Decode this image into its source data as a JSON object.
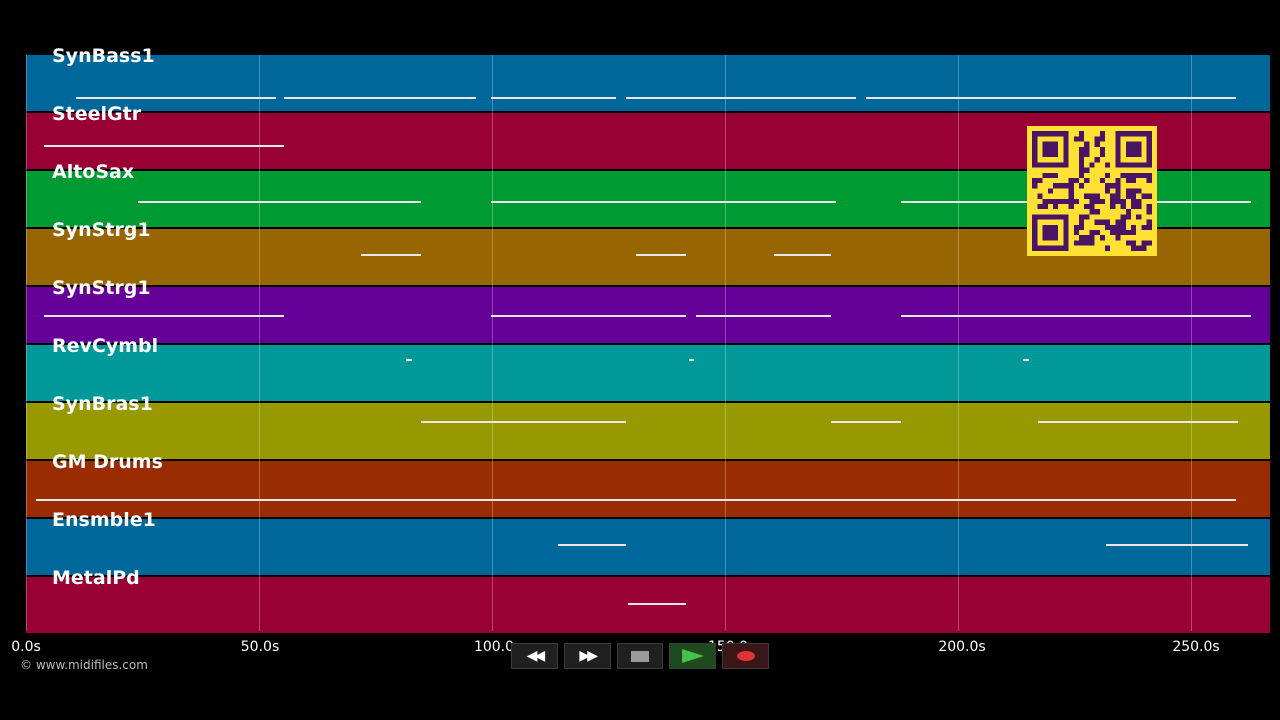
{
  "tracks": [
    {
      "name": "SynBass1",
      "color": "#00679b"
    },
    {
      "name": "SteelGtr",
      "color": "#990033"
    },
    {
      "name": "AltoSax",
      "color": "#009a33"
    },
    {
      "name": "SynStrg1",
      "color": "#986600"
    },
    {
      "name": "SynStrg1",
      "color": "#650099"
    },
    {
      "name": "RevCymbl",
      "color": "#009898"
    },
    {
      "name": "SynBras1",
      "color": "#989900"
    },
    {
      "name": "GM Drums",
      "color": "#992c00"
    },
    {
      "name": "Ensmble1",
      "color": "#00679b"
    },
    {
      "name": "MetalPd",
      "color": "#990033"
    }
  ],
  "time_axis": {
    "unit": "s",
    "max_seconds": 267,
    "ticks": [
      "0.0s",
      "50.0s",
      "100.0",
      "150.0",
      "200.0s",
      "250.0s"
    ]
  },
  "copyright": "© www.midifiles.com",
  "transport": {
    "rewind_label": "◀◀",
    "forward_label": "▶▶",
    "buttons": [
      "rewind",
      "fast-forward",
      "stop",
      "play",
      "record"
    ]
  },
  "qr_code": {
    "visible": true,
    "colors": {
      "fg": "#4a1465",
      "bg": "#ffe135"
    }
  }
}
